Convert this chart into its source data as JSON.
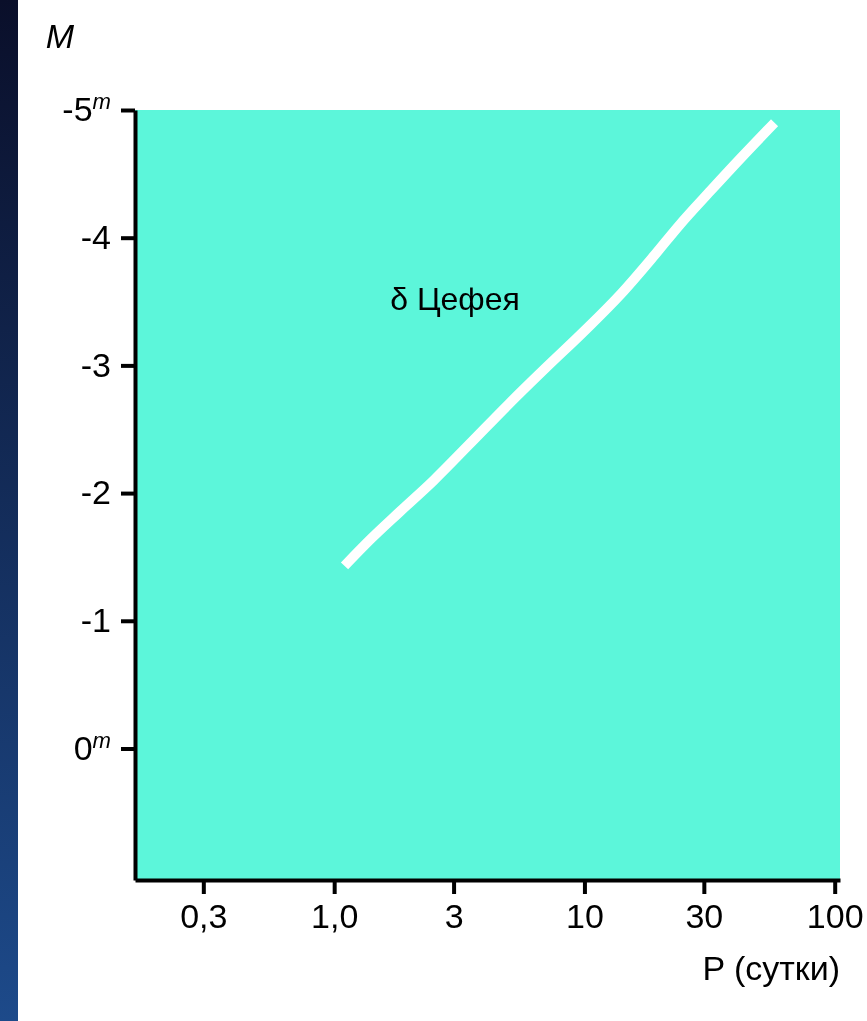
{
  "chart_data": {
    "type": "line",
    "xlabel": "P (сутки)",
    "ylabel": "M",
    "log": "x",
    "xlim": [
      0.16,
      105
    ],
    "xticks": [
      {
        "value": 0.3,
        "label": "0,3"
      },
      {
        "value": 1,
        "label": "1,0"
      },
      3,
      10,
      30,
      100
    ],
    "ylim": [
      1.03,
      -5
    ],
    "yticks": [
      {
        "value": -5,
        "label": "-5$^{m}$"
      },
      -4,
      -3,
      -2,
      -1,
      {
        "value": 0,
        "label": "0$^{m}$"
      }
    ],
    "grid": false,
    "marker": "none",
    "line_style": "solid",
    "annotations": [
      "δ Цефея"
    ],
    "series": [
      {
        "color": "#ffffff",
        "x": [
          1.1,
          1.4,
          1.82,
          2.5,
          3.46,
          5,
          7,
          10,
          14,
          19,
          24,
          32,
          42,
          57.5
        ],
        "values": [
          -1.43,
          -1.64,
          -1.85,
          -2.1,
          -2.38,
          -2.7,
          -2.98,
          -3.27,
          -3.56,
          -3.86,
          -4.1,
          -4.37,
          -4.62,
          -4.9
        ]
      }
    ]
  }
}
